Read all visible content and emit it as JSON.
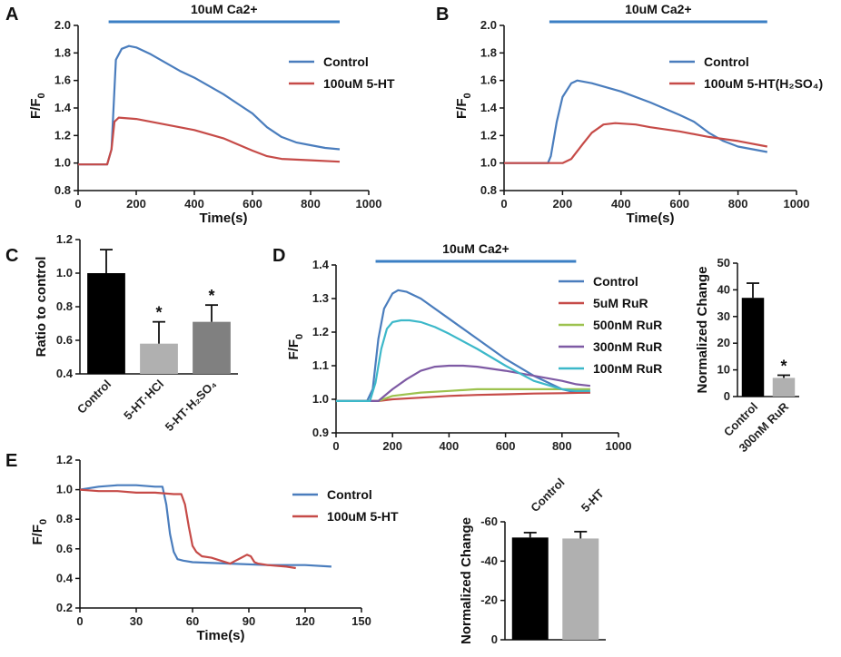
{
  "colors": {
    "blue": "#4a7dbd",
    "red": "#c64b48",
    "green": "#9dc24f",
    "purple": "#7e5aa4",
    "cyan": "#3cb8c9",
    "black": "#000000",
    "light_gray": "#b0b0b0",
    "dark_gray": "#808080",
    "bar_line": "#3b7fc4"
  },
  "chart_data": [
    {
      "panel": "A",
      "type": "line",
      "annotation": "10uM Ca2+",
      "ylabel": "F/F",
      "ylabel_sub": "0",
      "xlabel": "Time(s)",
      "xlim": [
        0,
        1000
      ],
      "ylim": [
        0.8,
        2.0
      ],
      "xticks": [
        "0",
        "200",
        "400",
        "600",
        "800",
        "1000"
      ],
      "yticks": [
        "0.8",
        "1.0",
        "1.2",
        "1.4",
        "1.6",
        "1.8",
        "2.0"
      ],
      "xtick_values": [
        0,
        200,
        400,
        600,
        800,
        1000
      ],
      "ytick_values": [
        0.8,
        1.0,
        1.2,
        1.4,
        1.6,
        1.8,
        2.0
      ],
      "bar_range": [
        105,
        900
      ],
      "series": [
        {
          "name": "Control",
          "color": "blue",
          "x": [
            0,
            100,
            115,
            130,
            150,
            175,
            200,
            250,
            300,
            350,
            400,
            450,
            500,
            550,
            600,
            650,
            700,
            750,
            800,
            850,
            900
          ],
          "y": [
            0.99,
            0.99,
            1.1,
            1.75,
            1.83,
            1.85,
            1.84,
            1.79,
            1.73,
            1.67,
            1.62,
            1.56,
            1.5,
            1.43,
            1.36,
            1.26,
            1.19,
            1.15,
            1.13,
            1.11,
            1.1
          ]
        },
        {
          "name": "100uM 5-HT",
          "color": "red",
          "x": [
            0,
            100,
            115,
            125,
            140,
            200,
            300,
            400,
            500,
            600,
            650,
            700,
            800,
            900
          ],
          "y": [
            0.99,
            0.99,
            1.1,
            1.3,
            1.33,
            1.32,
            1.28,
            1.24,
            1.18,
            1.09,
            1.05,
            1.03,
            1.02,
            1.01
          ]
        }
      ]
    },
    {
      "panel": "B",
      "type": "line",
      "annotation": "10uM Ca2+",
      "ylabel": "F/F",
      "ylabel_sub": "0",
      "xlabel": "Time(s)",
      "xlim": [
        0,
        1000
      ],
      "ylim": [
        0.8,
        2.0
      ],
      "xticks": [
        "0",
        "200",
        "400",
        "600",
        "800",
        "1000"
      ],
      "yticks": [
        "0.8",
        "1.0",
        "1.2",
        "1.4",
        "1.6",
        "1.8",
        "2.0"
      ],
      "xtick_values": [
        0,
        200,
        400,
        600,
        800,
        1000
      ],
      "ytick_values": [
        0.8,
        1.0,
        1.2,
        1.4,
        1.6,
        1.8,
        2.0
      ],
      "bar_range": [
        155,
        900
      ],
      "series": [
        {
          "name": "Control",
          "color": "blue",
          "x": [
            0,
            150,
            160,
            180,
            200,
            230,
            250,
            300,
            400,
            500,
            600,
            650,
            700,
            750,
            800,
            850,
            900
          ],
          "y": [
            1.0,
            1.0,
            1.05,
            1.3,
            1.48,
            1.58,
            1.6,
            1.58,
            1.52,
            1.44,
            1.35,
            1.3,
            1.22,
            1.16,
            1.12,
            1.1,
            1.08
          ]
        },
        {
          "name": "100uM 5-HT(H₂SO₄)",
          "color": "red",
          "x": [
            0,
            200,
            230,
            270,
            300,
            340,
            380,
            450,
            500,
            600,
            700,
            800,
            900
          ],
          "y": [
            1.0,
            1.0,
            1.03,
            1.14,
            1.22,
            1.28,
            1.29,
            1.28,
            1.26,
            1.23,
            1.19,
            1.16,
            1.12
          ]
        }
      ]
    },
    {
      "panel": "C",
      "type": "bar",
      "ylabel": "Ratio to control",
      "ylim": [
        0.4,
        1.2
      ],
      "yticks": [
        "0.4",
        "0.6",
        "0.8",
        "1.0",
        "1.2"
      ],
      "ytick_values": [
        0.4,
        0.6,
        0.8,
        1.0,
        1.2
      ],
      "categories": [
        "Control",
        "5-HT·HCl",
        "5-HT·H₂SO₄"
      ],
      "values": [
        1.0,
        0.58,
        0.71
      ],
      "errors": [
        0.14,
        0.13,
        0.1
      ],
      "bar_colors": [
        "black",
        "light_gray",
        "dark_gray"
      ],
      "markers": [
        "",
        "*",
        "*"
      ]
    },
    {
      "panel": "D",
      "type": "line",
      "annotation": "10uM Ca2+",
      "ylabel": "F/F",
      "ylabel_sub": "0",
      "xlabel": "",
      "xlim": [
        0,
        1000
      ],
      "ylim": [
        0.9,
        1.4
      ],
      "xticks": [
        "0",
        "200",
        "400",
        "600",
        "800",
        "1000"
      ],
      "yticks": [
        "0.9",
        "1.0",
        "1.1",
        "1.2",
        "1.3",
        "1.4"
      ],
      "xtick_values": [
        0,
        200,
        400,
        600,
        800,
        1000
      ],
      "ytick_values": [
        0.9,
        1.0,
        1.1,
        1.2,
        1.3,
        1.4
      ],
      "bar_range": [
        140,
        850
      ],
      "series": [
        {
          "name": "Control",
          "color": "blue",
          "x": [
            0,
            110,
            130,
            150,
            170,
            200,
            220,
            250,
            300,
            400,
            500,
            600,
            700,
            800,
            850,
            900
          ],
          "y": [
            0.995,
            0.995,
            1.03,
            1.18,
            1.27,
            1.315,
            1.325,
            1.32,
            1.3,
            1.24,
            1.18,
            1.12,
            1.07,
            1.03,
            1.02,
            1.02
          ]
        },
        {
          "name": "5uM RuR",
          "color": "red",
          "x": [
            0,
            150,
            200,
            300,
            400,
            500,
            600,
            700,
            800,
            900
          ],
          "y": [
            0.995,
            0.995,
            1.0,
            1.005,
            1.01,
            1.013,
            1.015,
            1.017,
            1.018,
            1.02
          ]
        },
        {
          "name": "500nM RuR",
          "color": "green",
          "x": [
            0,
            150,
            200,
            300,
            400,
            500,
            600,
            700,
            800,
            900
          ],
          "y": [
            0.995,
            0.995,
            1.01,
            1.02,
            1.025,
            1.03,
            1.03,
            1.03,
            1.03,
            1.03
          ]
        },
        {
          "name": "300nM RuR",
          "color": "purple",
          "x": [
            0,
            150,
            200,
            250,
            300,
            350,
            400,
            450,
            500,
            600,
            700,
            800,
            850,
            900
          ],
          "y": [
            0.995,
            0.995,
            1.03,
            1.06,
            1.085,
            1.097,
            1.1,
            1.1,
            1.097,
            1.085,
            1.07,
            1.055,
            1.045,
            1.04
          ]
        },
        {
          "name": "100nM RuR",
          "color": "cyan",
          "x": [
            0,
            120,
            140,
            160,
            180,
            200,
            230,
            260,
            300,
            350,
            400,
            500,
            600,
            700,
            800,
            850,
            900
          ],
          "y": [
            0.995,
            0.995,
            1.05,
            1.15,
            1.21,
            1.23,
            1.235,
            1.235,
            1.23,
            1.215,
            1.195,
            1.15,
            1.1,
            1.055,
            1.03,
            1.025,
            1.025
          ]
        }
      ]
    },
    {
      "panel": "D-bar",
      "type": "bar",
      "ylabel": "Normalized Change",
      "ylim": [
        0,
        50
      ],
      "yticks": [
        "0",
        "10",
        "20",
        "30",
        "40",
        "50"
      ],
      "ytick_values": [
        0,
        10,
        20,
        30,
        40,
        50
      ],
      "categories": [
        "Control",
        "300nM RuR"
      ],
      "values": [
        37,
        7
      ],
      "errors": [
        5.5,
        1
      ],
      "bar_colors": [
        "black",
        "light_gray"
      ],
      "markers": [
        "",
        "*"
      ]
    },
    {
      "panel": "E",
      "type": "line",
      "ylabel": "F/F",
      "ylabel_sub": "0",
      "xlabel": "Time(s)",
      "xlim": [
        0,
        150
      ],
      "ylim": [
        0.2,
        1.2
      ],
      "xticks": [
        "0",
        "30",
        "60",
        "90",
        "120",
        "150"
      ],
      "yticks": [
        "0.2",
        "0.4",
        "0.6",
        "0.8",
        "1.0",
        "1.2"
      ],
      "xtick_values": [
        0,
        30,
        60,
        90,
        120,
        150
      ],
      "ytick_values": [
        0.2,
        0.4,
        0.6,
        0.8,
        1.0,
        1.2
      ],
      "series": [
        {
          "name": "Control",
          "color": "blue",
          "x": [
            0,
            10,
            20,
            30,
            40,
            44,
            46,
            48,
            50,
            52,
            55,
            60,
            80,
            100,
            120,
            134
          ],
          "y": [
            1.0,
            1.02,
            1.03,
            1.03,
            1.02,
            1.02,
            0.9,
            0.7,
            0.58,
            0.53,
            0.52,
            0.51,
            0.5,
            0.49,
            0.49,
            0.48
          ]
        },
        {
          "name": "100uM 5-HT",
          "color": "red",
          "x": [
            0,
            10,
            20,
            30,
            40,
            50,
            54,
            56,
            58,
            60,
            62,
            65,
            70,
            75,
            80,
            83,
            86,
            89,
            91,
            93,
            95,
            100,
            110,
            115
          ],
          "y": [
            1.0,
            0.99,
            0.99,
            0.98,
            0.98,
            0.97,
            0.97,
            0.9,
            0.75,
            0.62,
            0.58,
            0.55,
            0.54,
            0.52,
            0.5,
            0.52,
            0.54,
            0.56,
            0.55,
            0.51,
            0.5,
            0.49,
            0.48,
            0.47
          ]
        }
      ]
    },
    {
      "panel": "E-bar",
      "type": "bar",
      "ylabel": "Normalized Change",
      "ylim": [
        -60,
        0
      ],
      "yticks": [
        "0",
        "-20",
        "-40",
        "-60"
      ],
      "ytick_values": [
        0,
        -20,
        -40,
        -60
      ],
      "categories": [
        "Control",
        "5-HT"
      ],
      "values": [
        -52,
        -51.5
      ],
      "errors": [
        2.5,
        3.5
      ],
      "bar_colors": [
        "black",
        "light_gray"
      ],
      "markers": [
        "",
        ""
      ]
    }
  ]
}
